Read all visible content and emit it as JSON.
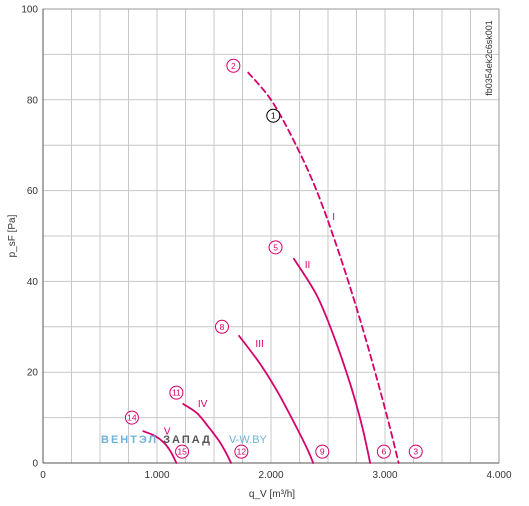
{
  "chart_data": {
    "type": "line",
    "title": "",
    "xlabel": "q_V [m³/h]",
    "ylabel": "p_sF [Pa]",
    "xlim": [
      0,
      4000
    ],
    "ylim": [
      0,
      100
    ],
    "x_ticks": [
      {
        "value": 0,
        "label": "0"
      },
      {
        "value": 1000,
        "label": "1.000"
      },
      {
        "value": 2000,
        "label": "2.000"
      },
      {
        "value": 3000,
        "label": "3.000"
      },
      {
        "value": 4000,
        "label": "4.000"
      }
    ],
    "y_ticks": [
      {
        "value": 0,
        "label": "0"
      },
      {
        "value": 20,
        "label": "20"
      },
      {
        "value": 40,
        "label": "40"
      },
      {
        "value": 60,
        "label": "60"
      },
      {
        "value": 80,
        "label": "80"
      },
      {
        "value": 100,
        "label": "100"
      }
    ],
    "grid": true,
    "series": [
      {
        "name": "I",
        "style": "dashed",
        "label_at": [
          2550,
          53.5
        ],
        "points": [
          [
            1800,
            86
          ],
          [
            2000,
            80
          ],
          [
            2200,
            71
          ],
          [
            2400,
            60
          ],
          [
            2600,
            46
          ],
          [
            2800,
            30
          ],
          [
            3000,
            12
          ],
          [
            3120,
            0
          ]
        ]
      },
      {
        "name": "II",
        "style": "solid",
        "label_at": [
          2320,
          43
        ],
        "points": [
          [
            2200,
            45
          ],
          [
            2400,
            37
          ],
          [
            2550,
            28
          ],
          [
            2700,
            17
          ],
          [
            2800,
            8
          ],
          [
            2870,
            0
          ]
        ]
      },
      {
        "name": "III",
        "style": "solid",
        "label_at": [
          1900,
          25.5
        ],
        "points": [
          [
            1720,
            28
          ],
          [
            1900,
            22
          ],
          [
            2050,
            16
          ],
          [
            2200,
            9
          ],
          [
            2320,
            3
          ],
          [
            2370,
            0
          ]
        ]
      },
      {
        "name": "IV",
        "style": "solid",
        "label_at": [
          1400,
          12.3
        ],
        "points": [
          [
            1230,
            13
          ],
          [
            1350,
            11
          ],
          [
            1450,
            8
          ],
          [
            1540,
            5
          ],
          [
            1600,
            2.5
          ],
          [
            1650,
            0
          ]
        ]
      },
      {
        "name": "V",
        "style": "solid",
        "label_at": [
          1090,
          6.3
        ],
        "points": [
          [
            880,
            7
          ],
          [
            980,
            6
          ],
          [
            1060,
            4.5
          ],
          [
            1120,
            2.5
          ],
          [
            1170,
            0
          ]
        ]
      }
    ],
    "markers": [
      {
        "label": "1",
        "x": 2020,
        "y": 76.5,
        "style": "operating-point"
      },
      {
        "label": "2",
        "x": 1670,
        "y": 87.5
      },
      {
        "label": "3",
        "x": 3270,
        "y": 2.5
      },
      {
        "label": "5",
        "x": 2040,
        "y": 47.5
      },
      {
        "label": "6",
        "x": 2990,
        "y": 2.5
      },
      {
        "label": "8",
        "x": 1570,
        "y": 30
      },
      {
        "label": "9",
        "x": 2450,
        "y": 2.5
      },
      {
        "label": "11",
        "x": 1170,
        "y": 15.5
      },
      {
        "label": "12",
        "x": 1740,
        "y": 2.5
      },
      {
        "label": "14",
        "x": 780,
        "y": 10
      },
      {
        "label": "15",
        "x": 1220,
        "y": 2.5
      }
    ],
    "code_label": "fb0354ek2c6sk001",
    "watermark": {
      "part1": "ВЕНТЭЛ",
      "part2": "ЗАПАД",
      "part3": "V-W.BY",
      "color1": "#6cb4dd",
      "color2": "#555555",
      "color3": "#6cb4dd"
    },
    "colors": {
      "curve": "#d6006b",
      "grid": "#c8c8c8",
      "axis": "#555555"
    }
  }
}
